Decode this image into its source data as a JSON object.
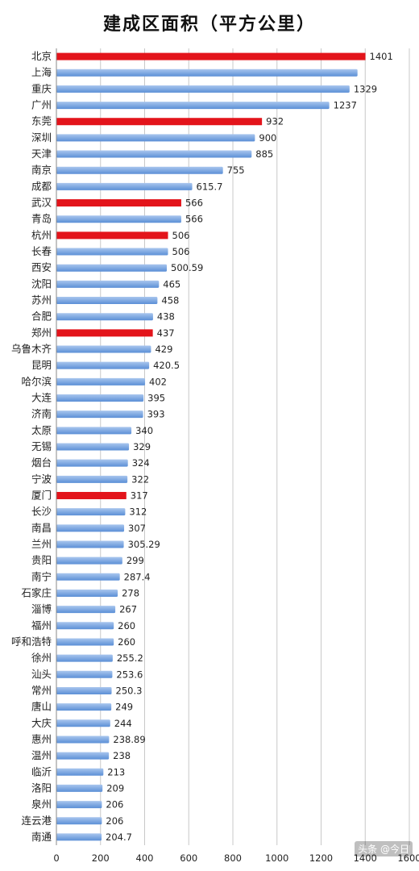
{
  "chart_data": {
    "type": "bar",
    "orientation": "horizontal",
    "title": "建成区面积（平方公里）",
    "categories": [
      "北京",
      "上海",
      "重庆",
      "广州",
      "东莞",
      "深圳",
      "天津",
      "南京",
      "成都",
      "武汉",
      "青岛",
      "杭州",
      "长春",
      "西安",
      "沈阳",
      "苏州",
      "合肥",
      "郑州",
      "乌鲁木齐",
      "昆明",
      "哈尔滨",
      "大连",
      "济南",
      "太原",
      "无锡",
      "烟台",
      "宁波",
      "厦门",
      "长沙",
      "南昌",
      "兰州",
      "贵阳",
      "南宁",
      "石家庄",
      "淄博",
      "福州",
      "呼和浩特",
      "徐州",
      "汕头",
      "常州",
      "唐山",
      "大庆",
      "惠州",
      "温州",
      "临沂",
      "洛阳",
      "泉州",
      "连云港",
      "南通"
    ],
    "values": [
      1401,
      1365,
      1329,
      1237,
      932,
      900,
      885,
      755,
      615.7,
      566,
      566,
      506,
      506,
      500.59,
      465,
      458,
      438,
      437,
      429,
      420.5,
      402,
      395,
      393,
      340,
      329,
      324,
      322,
      317,
      312,
      307,
      305.29,
      299,
      287.4,
      278,
      267,
      260,
      260,
      255.2,
      253.6,
      250.3,
      249,
      244,
      238.89,
      238,
      213,
      209,
      206,
      206,
      204.7
    ],
    "value_labels": [
      "1401",
      "",
      "1329",
      "1237",
      "932",
      "900",
      "885",
      "755",
      "615.7",
      "566",
      "566",
      "506",
      "506",
      "500.59",
      "465",
      "458",
      "438",
      "437",
      "429",
      "420.5",
      "402",
      "395",
      "393",
      "340",
      "329",
      "324",
      "322",
      "317",
      "312",
      "307",
      "305.29",
      "299",
      "287.4",
      "278",
      "267",
      "260",
      "260",
      "255.2",
      "253.6",
      "250.3",
      "249",
      "244",
      "238.89",
      "238",
      "213",
      "209",
      "206",
      "206",
      "204.7"
    ],
    "highlighted": [
      "北京",
      "东莞",
      "武汉",
      "杭州",
      "郑州",
      "厦门"
    ],
    "xlim": [
      0,
      1600
    ],
    "xticks": [
      "0",
      "200",
      "400",
      "600",
      "800",
      "1000",
      "1200",
      "1400",
      "1600"
    ],
    "grid": true,
    "colors": {
      "bar": "#5b8fd6",
      "bar_light": "#a9c6ee",
      "highlight": "#e3141b",
      "grid": "#c8c8c8"
    }
  },
  "watermark": "头条 @今日"
}
